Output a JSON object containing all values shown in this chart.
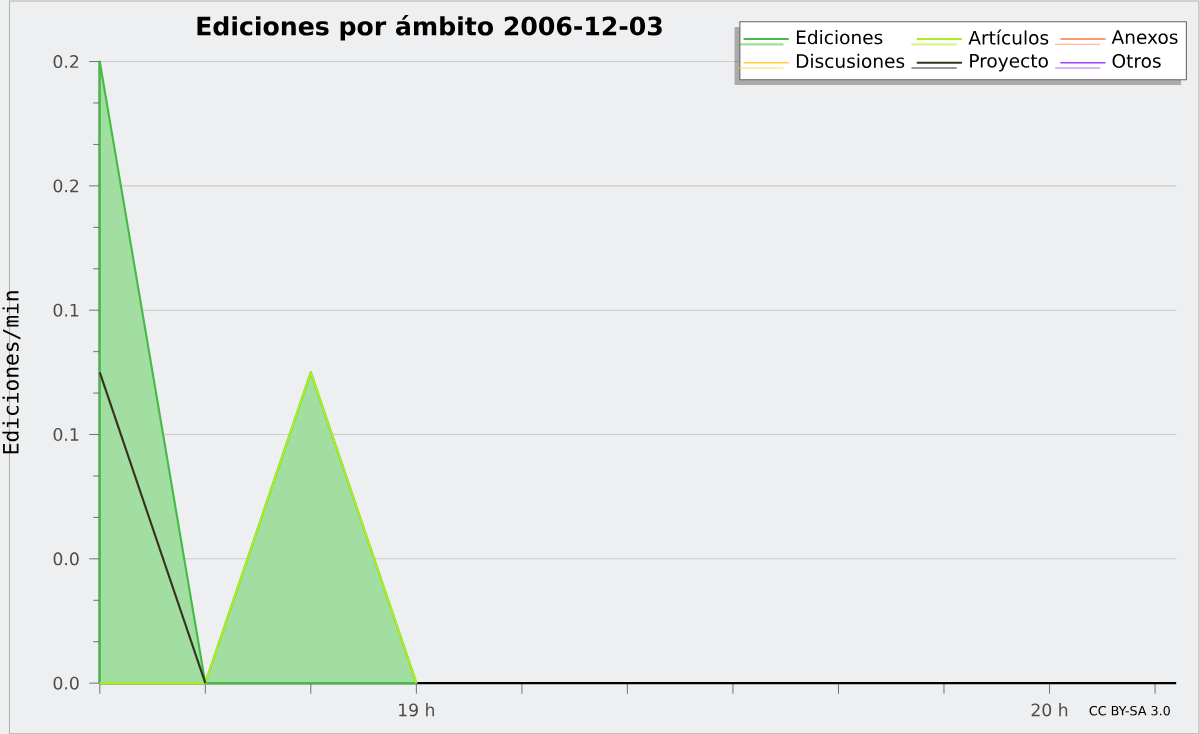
{
  "chart_data": {
    "type": "line",
    "title": "Ediciones por ámbito  2006-12-03",
    "ylabel": "Ediciones/min",
    "x": [
      18.5,
      18.6667,
      18.8333,
      19.0
    ],
    "series": [
      {
        "name": "Ediciones",
        "type": "area",
        "color": "#44bb44",
        "values": [
          0.2,
          0,
          0.1,
          0
        ]
      },
      {
        "name": "Artículos",
        "color": "#aaee22",
        "values": [
          0,
          0,
          0.1,
          0
        ]
      },
      {
        "name": "Anexos",
        "color": "#ff7744",
        "values": [
          null,
          null,
          null,
          null
        ]
      },
      {
        "name": "Discusiones",
        "color": "#ffcc44",
        "values": [
          null,
          null,
          null,
          null
        ]
      },
      {
        "name": "Proyecto",
        "color": "#333322",
        "values": [
          0.1,
          0,
          null,
          null
        ]
      },
      {
        "name": "Otros",
        "color": "#9944ff",
        "values": [
          null,
          null,
          null,
          null
        ]
      }
    ],
    "xlim": [
      18.5,
      20.2
    ],
    "xticks": [
      {
        "value": 18.5,
        "label": null
      },
      {
        "value": 18.6667,
        "label": null
      },
      {
        "value": 18.8333,
        "label": null
      },
      {
        "value": 19,
        "label": "19 h"
      },
      {
        "value": 19.1667,
        "label": null
      },
      {
        "value": 19.3333,
        "label": null
      },
      {
        "value": 19.5,
        "label": null
      },
      {
        "value": 19.6667,
        "label": null
      },
      {
        "value": 19.8333,
        "label": null
      },
      {
        "value": 20,
        "label": "20 h"
      },
      {
        "value": 20.1667,
        "label": null
      }
    ],
    "ylim": [
      0,
      0.2
    ],
    "yticks": [
      {
        "value": 0,
        "label": "0.0"
      },
      {
        "value": 0.04,
        "label": "0.0"
      },
      {
        "value": 0.08,
        "label": "0.1"
      },
      {
        "value": 0.12,
        "label": "0.1"
      },
      {
        "value": 0.16,
        "label": "0.2"
      },
      {
        "value": 0.2,
        "label": "0.2"
      }
    ],
    "grid": "y",
    "legend": "top right",
    "annotations": [
      "CC BY-SA 3.0"
    ]
  }
}
